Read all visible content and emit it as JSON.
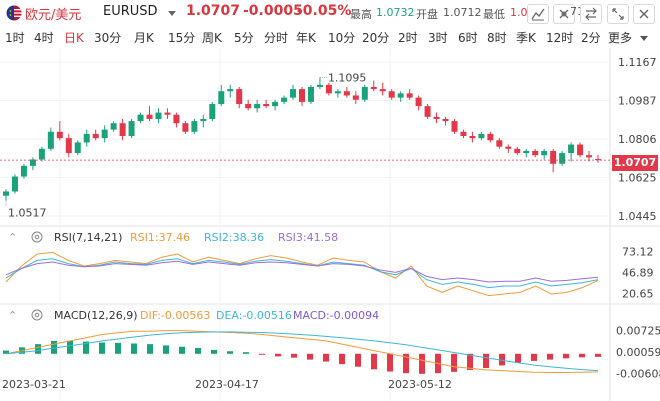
{
  "header": {
    "symbol_name": "欧元/美元",
    "symbol_code": "EURUSD",
    "price": "1.0707",
    "change": "-0.0005",
    "change_pct": "-0.05%",
    "high_label": "最高",
    "high_value": "1.0732",
    "open_label": "开盘",
    "open_value": "1.0712",
    "low_label": "最低",
    "low_value": "1.0",
    "truncated_value": "71",
    "colors": {
      "down": "#d9363e",
      "up": "#1aa37a",
      "stat_value": "#1aa37a"
    }
  },
  "toolbar": {
    "icons": [
      "indicator-icon",
      "settings-icon",
      "compare-icon",
      "expand-icon"
    ]
  },
  "tabs": [
    {
      "label": "1时",
      "active": false
    },
    {
      "label": "4时",
      "active": false
    },
    {
      "label": "日K",
      "active": true
    },
    {
      "label": "30分",
      "active": false
    },
    {
      "label": "月K",
      "active": false
    },
    {
      "label": "15分",
      "active": false
    },
    {
      "label": "周K",
      "active": false
    },
    {
      "label": "5分",
      "active": false
    },
    {
      "label": "分时",
      "active": false
    },
    {
      "label": "年K",
      "active": false
    },
    {
      "label": "10分",
      "active": false
    },
    {
      "label": "20分",
      "active": false
    },
    {
      "label": "2时",
      "active": false
    },
    {
      "label": "3时",
      "active": false
    },
    {
      "label": "6时",
      "active": false
    },
    {
      "label": "8时",
      "active": false
    },
    {
      "label": "季K",
      "active": false
    },
    {
      "label": "12时",
      "active": false
    },
    {
      "label": "2分",
      "active": false
    },
    {
      "label": "更多",
      "active": false
    }
  ],
  "main_chart": {
    "y_ticks": [
      "1.1167",
      "1.0987",
      "1.0806",
      "1.0625",
      "1.0445"
    ],
    "current_price_tag": "1.0707",
    "max_label": "1.1095",
    "min_label": "1.0517"
  },
  "chart_data": [
    {
      "type": "candlestick",
      "title": "EURUSD 日K",
      "y_range": [
        1.0445,
        1.1167
      ],
      "x_labels": [
        "2023-03-21",
        "2023-04-17",
        "2023-05-12"
      ],
      "candles": [
        [
          1.054,
          1.057,
          1.0517,
          1.056
        ],
        [
          1.056,
          1.064,
          1.055,
          1.063
        ],
        [
          1.063,
          1.069,
          1.062,
          1.068
        ],
        [
          1.068,
          1.072,
          1.066,
          1.071
        ],
        [
          1.071,
          1.077,
          1.07,
          1.076
        ],
        [
          1.076,
          1.086,
          1.075,
          1.084
        ],
        [
          1.084,
          1.089,
          1.08,
          1.081
        ],
        [
          1.081,
          1.083,
          1.072,
          1.074
        ],
        [
          1.074,
          1.08,
          1.073,
          1.079
        ],
        [
          1.079,
          1.085,
          1.077,
          1.083
        ],
        [
          1.083,
          1.085,
          1.08,
          1.081
        ],
        [
          1.081,
          1.087,
          1.079,
          1.085
        ],
        [
          1.085,
          1.089,
          1.084,
          1.088
        ],
        [
          1.088,
          1.09,
          1.08,
          1.082
        ],
        [
          1.082,
          1.09,
          1.081,
          1.089
        ],
        [
          1.089,
          1.093,
          1.088,
          1.092
        ],
        [
          1.092,
          1.096,
          1.089,
          1.09
        ],
        [
          1.09,
          1.095,
          1.088,
          1.093
        ],
        [
          1.093,
          1.095,
          1.09,
          1.092
        ],
        [
          1.092,
          1.093,
          1.086,
          1.088
        ],
        [
          1.088,
          1.089,
          1.083,
          1.084
        ],
        [
          1.084,
          1.09,
          1.083,
          1.089
        ],
        [
          1.089,
          1.092,
          1.086,
          1.09
        ],
        [
          1.09,
          1.098,
          1.089,
          1.097
        ],
        [
          1.097,
          1.106,
          1.096,
          1.103
        ],
        [
          1.103,
          1.106,
          1.1,
          1.104
        ],
        [
          1.104,
          1.105,
          1.095,
          1.097
        ],
        [
          1.097,
          1.099,
          1.094,
          1.095
        ],
        [
          1.095,
          1.099,
          1.093,
          1.097
        ],
        [
          1.097,
          1.099,
          1.095,
          1.096
        ],
        [
          1.096,
          1.099,
          1.094,
          1.098
        ],
        [
          1.098,
          1.101,
          1.097,
          1.1
        ],
        [
          1.1,
          1.106,
          1.099,
          1.104
        ],
        [
          1.104,
          1.105,
          1.096,
          1.098
        ],
        [
          1.098,
          1.106,
          1.097,
          1.105
        ],
        [
          1.105,
          1.1095,
          1.104,
          1.106
        ],
        [
          1.106,
          1.107,
          1.101,
          1.102
        ],
        [
          1.102,
          1.104,
          1.1,
          1.103
        ],
        [
          1.103,
          1.105,
          1.1,
          1.101
        ],
        [
          1.101,
          1.103,
          1.097,
          1.099
        ],
        [
          1.099,
          1.106,
          1.098,
          1.105
        ],
        [
          1.105,
          1.108,
          1.103,
          1.104
        ],
        [
          1.104,
          1.107,
          1.101,
          1.103
        ],
        [
          1.103,
          1.104,
          1.099,
          1.1
        ],
        [
          1.1,
          1.103,
          1.098,
          1.102
        ],
        [
          1.102,
          1.104,
          1.099,
          1.1
        ],
        [
          1.1,
          1.101,
          1.094,
          1.096
        ],
        [
          1.096,
          1.097,
          1.09,
          1.091
        ],
        [
          1.091,
          1.093,
          1.088,
          1.09
        ],
        [
          1.09,
          1.091,
          1.087,
          1.089
        ],
        [
          1.089,
          1.09,
          1.083,
          1.084
        ],
        [
          1.084,
          1.085,
          1.081,
          1.082
        ],
        [
          1.082,
          1.084,
          1.079,
          1.081
        ],
        [
          1.081,
          1.084,
          1.08,
          1.083
        ],
        [
          1.083,
          1.084,
          1.079,
          1.08
        ],
        [
          1.08,
          1.081,
          1.076,
          1.077
        ],
        [
          1.077,
          1.078,
          1.074,
          1.076
        ],
        [
          1.076,
          1.077,
          1.073,
          1.074
        ],
        [
          1.074,
          1.076,
          1.072,
          1.075
        ],
        [
          1.075,
          1.076,
          1.072,
          1.073
        ],
        [
          1.073,
          1.076,
          1.071,
          1.075
        ],
        [
          1.075,
          1.076,
          1.065,
          1.069
        ],
        [
          1.069,
          1.075,
          1.068,
          1.074
        ],
        [
          1.074,
          1.079,
          1.07,
          1.078
        ],
        [
          1.078,
          1.079,
          1.072,
          1.073
        ],
        [
          1.073,
          1.075,
          1.07,
          1.072
        ],
        [
          1.0712,
          1.0732,
          1.0695,
          1.0707
        ]
      ]
    },
    {
      "type": "line",
      "title": "RSI(7,14,21)",
      "y_ticks": [
        "73.12",
        "46.89",
        "20.65"
      ],
      "series": [
        {
          "name": "RSI1:37.46",
          "color": "#f09b3b",
          "values": [
            35,
            55,
            70,
            72,
            62,
            55,
            58,
            62,
            60,
            58,
            66,
            70,
            60,
            66,
            62,
            58,
            64,
            68,
            65,
            60,
            56,
            65,
            62,
            60,
            48,
            40,
            55,
            30,
            22,
            30,
            24,
            18,
            20,
            22,
            30,
            20,
            22,
            28,
            37
          ]
        },
        {
          "name": "RSI2:38.36",
          "color": "#3fb7d6",
          "values": [
            40,
            52,
            62,
            64,
            58,
            54,
            56,
            60,
            58,
            57,
            62,
            64,
            58,
            62,
            60,
            57,
            61,
            63,
            61,
            58,
            55,
            60,
            58,
            56,
            48,
            44,
            52,
            38,
            32,
            35,
            32,
            28,
            30,
            30,
            35,
            30,
            32,
            34,
            38
          ]
        },
        {
          "name": "RSI3:41.58",
          "color": "#9b6fd6",
          "values": [
            44,
            52,
            58,
            60,
            56,
            54,
            55,
            58,
            57,
            56,
            59,
            61,
            57,
            60,
            58,
            56,
            59,
            60,
            59,
            57,
            55,
            58,
            57,
            55,
            50,
            47,
            52,
            42,
            38,
            40,
            38,
            35,
            36,
            36,
            40,
            36,
            37,
            39,
            41
          ]
        }
      ]
    },
    {
      "type": "bar",
      "title": "MACD(12,26,9)",
      "y_ticks": [
        "0.00725",
        "0.00059",
        "-0.00608"
      ],
      "series": [
        {
          "name": "DIF:-0.00563",
          "color": "#f09b3b",
          "values": [
            0.0,
            0.001,
            0.002,
            0.003,
            0.004,
            0.005,
            0.006,
            0.0065,
            0.007,
            0.007,
            0.0072,
            0.0072,
            0.007,
            0.0068,
            0.0066,
            0.0064,
            0.006,
            0.0055,
            0.005,
            0.0045,
            0.004,
            0.003,
            0.002,
            0.001,
            0.0,
            -0.001,
            -0.002,
            -0.003,
            -0.004,
            -0.0045,
            -0.005,
            -0.0052,
            -0.0055,
            -0.0057,
            -0.0058,
            -0.0058,
            -0.0057,
            -0.0056
          ]
        },
        {
          "name": "DEA:-0.00516",
          "color": "#3fb7d6",
          "values": [
            0.0,
            0.0005,
            0.001,
            0.0018,
            0.0025,
            0.0032,
            0.004,
            0.0046,
            0.0052,
            0.0058,
            0.0062,
            0.0065,
            0.0067,
            0.0068,
            0.0068,
            0.0067,
            0.0066,
            0.0064,
            0.0061,
            0.0058,
            0.0054,
            0.005,
            0.0045,
            0.004,
            0.0034,
            0.0028,
            0.002,
            0.0012,
            0.0004,
            -0.0004,
            -0.0012,
            -0.002,
            -0.0028,
            -0.0035,
            -0.004,
            -0.0045,
            -0.0049,
            -0.0052
          ]
        },
        {
          "name": "MACD:-0.00094",
          "color": "#333333",
          "values": [
            0.001,
            0.002,
            0.003,
            0.004,
            0.004,
            0.0038,
            0.0035,
            0.0034,
            0.0032,
            0.003,
            0.0026,
            0.0022,
            0.0018,
            0.0012,
            0.0008,
            0.0005,
            -0.0002,
            -0.0008,
            -0.0012,
            -0.0018,
            -0.0024,
            -0.0032,
            -0.004,
            -0.0048,
            -0.0055,
            -0.006,
            -0.0062,
            -0.006,
            -0.0056,
            -0.005,
            -0.0044,
            -0.0036,
            -0.0028,
            -0.0022,
            -0.0018,
            -0.0014,
            -0.0011,
            -0.00094
          ]
        }
      ]
    }
  ]
}
